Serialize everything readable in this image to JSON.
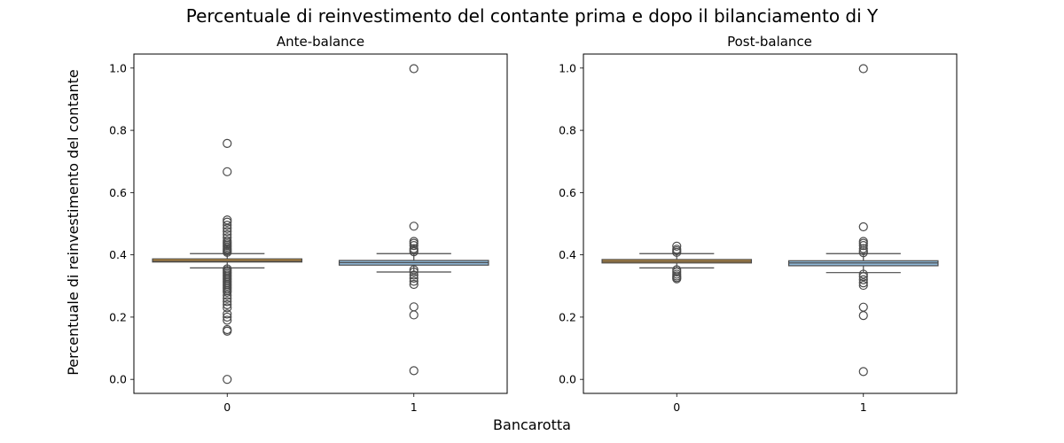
{
  "figure": {
    "title": "Percentuale di reinvestimento del contante prima e dopo il bilanciamento di Y",
    "xlabel": "Bancarotta",
    "ylabel": "Percentuale di reinvestimento del contante"
  },
  "colors": {
    "class_0": "#e5a33a",
    "class_1": "#8fb8d8",
    "edge": "#4a4a4a"
  },
  "chart_data": [
    {
      "type": "box",
      "title": "Ante-balance",
      "categories": [
        "0",
        "1"
      ],
      "ylim": [
        -0.045,
        1.045
      ],
      "yticks": [
        0.0,
        0.2,
        0.4,
        0.6,
        0.8,
        1.0
      ],
      "ytick_labels": [
        "0.0",
        "0.2",
        "0.4",
        "0.6",
        "0.8",
        "1.0"
      ],
      "series": [
        {
          "category": "0",
          "whislo": 0.358,
          "q1": 0.377,
          "med": 0.381,
          "q3": 0.387,
          "whishi": 0.404,
          "fliers": [
            0.0,
            0.155,
            0.16,
            0.19,
            0.2,
            0.21,
            0.23,
            0.24,
            0.25,
            0.26,
            0.27,
            0.28,
            0.285,
            0.29,
            0.295,
            0.3,
            0.305,
            0.31,
            0.315,
            0.32,
            0.325,
            0.33,
            0.335,
            0.34,
            0.345,
            0.35,
            0.355,
            0.408,
            0.412,
            0.416,
            0.42,
            0.425,
            0.43,
            0.435,
            0.44,
            0.445,
            0.455,
            0.465,
            0.475,
            0.485,
            0.495,
            0.505,
            0.512,
            0.667,
            0.758
          ]
        },
        {
          "category": "1",
          "whislo": 0.345,
          "q1": 0.367,
          "med": 0.375,
          "q3": 0.382,
          "whishi": 0.404,
          "fliers": [
            0.028,
            0.207,
            0.233,
            0.305,
            0.315,
            0.325,
            0.335,
            0.345,
            0.352,
            0.41,
            0.415,
            0.42,
            0.43,
            0.437,
            0.443,
            0.492,
            0.998
          ]
        }
      ]
    },
    {
      "type": "box",
      "title": "Post-balance",
      "categories": [
        "0",
        "1"
      ],
      "ylim": [
        -0.045,
        1.045
      ],
      "yticks": [
        0.0,
        0.2,
        0.4,
        0.6,
        0.8,
        1.0
      ],
      "ytick_labels": [
        "0.0",
        "0.2",
        "0.4",
        "0.6",
        "0.8",
        "1.0"
      ],
      "series": [
        {
          "category": "0",
          "whislo": 0.358,
          "q1": 0.374,
          "med": 0.379,
          "q3": 0.385,
          "whishi": 0.404,
          "fliers": [
            0.323,
            0.327,
            0.332,
            0.338,
            0.345,
            0.352,
            0.408,
            0.413,
            0.418,
            0.428
          ]
        },
        {
          "category": "1",
          "whislo": 0.343,
          "q1": 0.365,
          "med": 0.374,
          "q3": 0.381,
          "whishi": 0.404,
          "fliers": [
            0.025,
            0.205,
            0.232,
            0.302,
            0.31,
            0.32,
            0.33,
            0.338,
            0.407,
            0.413,
            0.42,
            0.43,
            0.437,
            0.443,
            0.49,
            0.998
          ]
        }
      ]
    }
  ]
}
